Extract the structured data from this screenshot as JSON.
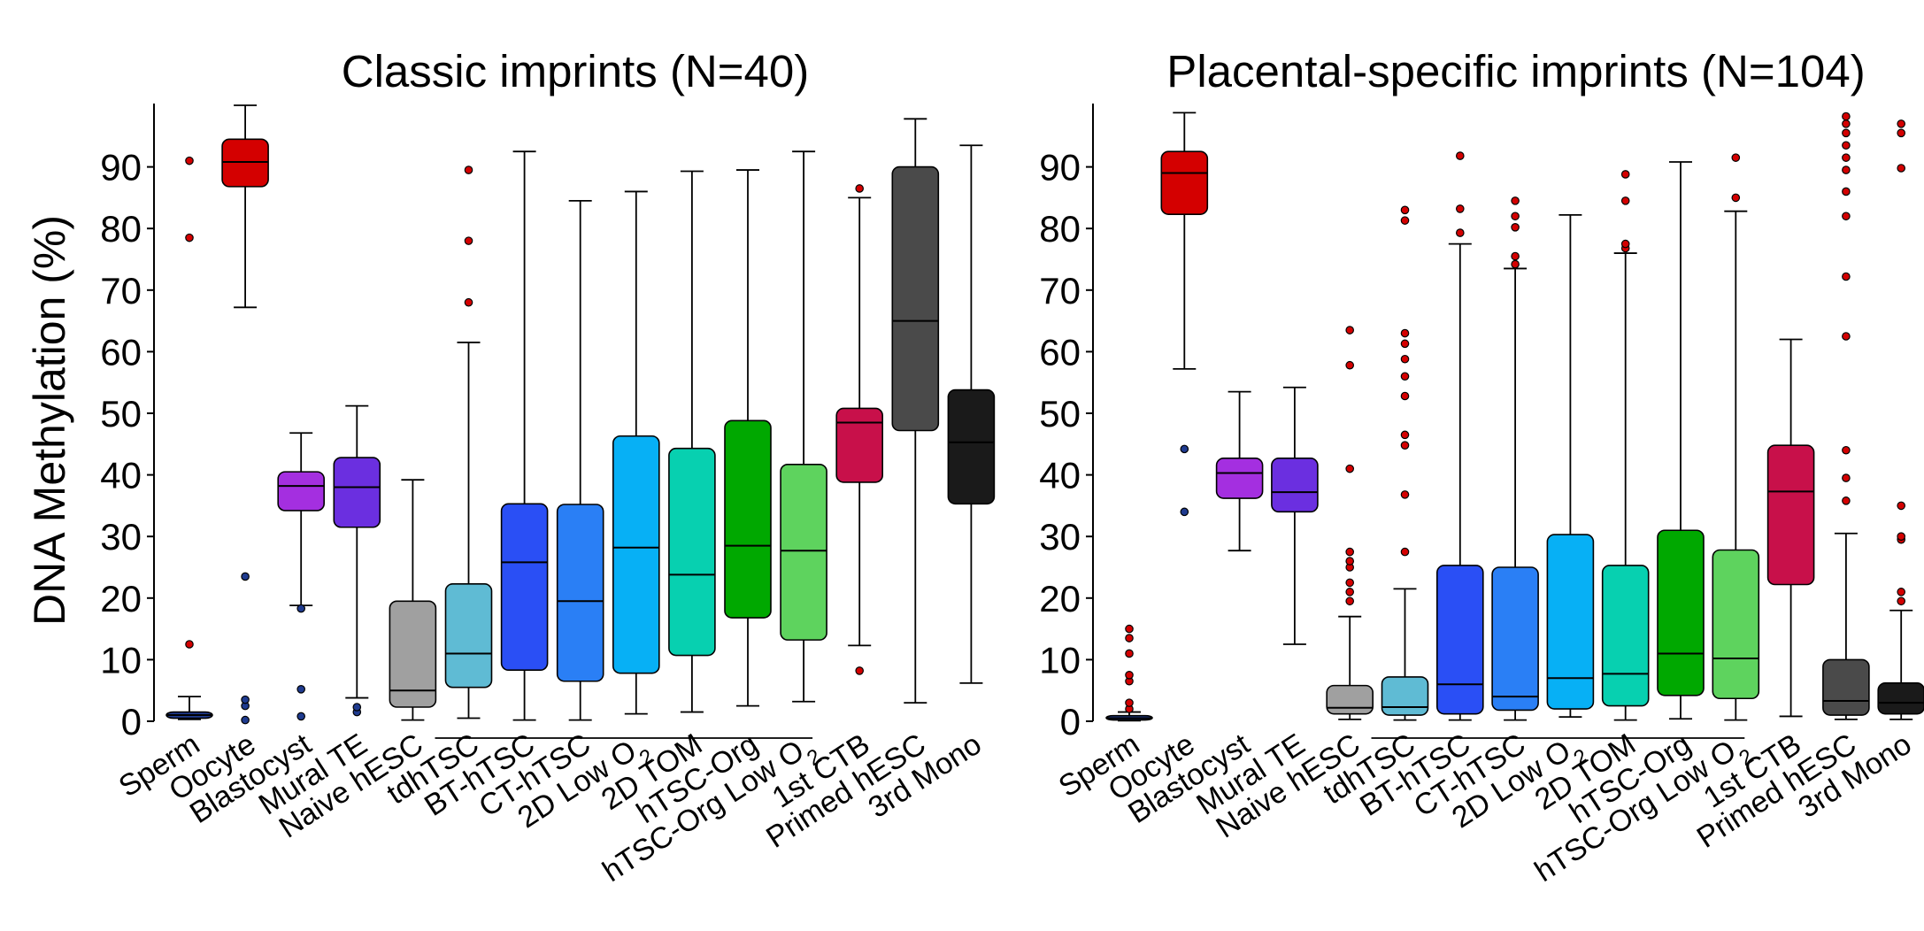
{
  "chart_data": [
    {
      "type": "boxplot",
      "title": "Classic imprints (N=40)",
      "ylabel": "DNA Methylation (%)",
      "ylim": [
        0,
        100
      ],
      "yticks": [
        0,
        10,
        20,
        30,
        40,
        50,
        60,
        70,
        80,
        90
      ],
      "bracket": {
        "from": "tdhTSC",
        "to": "hTSC-Org Low O2"
      },
      "series": [
        {
          "name": "Sperm",
          "color": "#1f3b8f",
          "whisker_low": 0.3,
          "q1": 0.5,
          "median": 1.0,
          "q3": 1.5,
          "whisker_high": 4.0,
          "outliers": [
            12.5,
            78.5,
            91.0
          ],
          "outlier_color": "#d40000"
        },
        {
          "name": "Oocyte",
          "color": "#d40000",
          "whisker_low": 67.2,
          "q1": 86.8,
          "median": 90.8,
          "q3": 94.5,
          "whisker_high": 100.0,
          "outliers": [
            0.2,
            2.5,
            3.5,
            23.5
          ],
          "outlier_color": "#1f3b8f"
        },
        {
          "name": "Blastocyst",
          "color": "#a42fe0",
          "whisker_low": 18.8,
          "q1": 34.2,
          "median": 38.2,
          "q3": 40.5,
          "whisker_high": 46.8,
          "outliers": [
            0.8,
            5.2,
            18.3
          ],
          "outlier_color": "#1f3b8f"
        },
        {
          "name": "Mural TE",
          "color": "#6b2fe0",
          "whisker_low": 3.8,
          "q1": 31.5,
          "median": 38.0,
          "q3": 42.8,
          "whisker_high": 51.2,
          "outliers": [
            1.5,
            2.3
          ],
          "outlier_color": "#1f3b8f"
        },
        {
          "name": "Naive hESC",
          "color": "#a0a0a0",
          "whisker_low": 0.2,
          "q1": 2.3,
          "median": 5.0,
          "q3": 19.5,
          "whisker_high": 39.2,
          "outliers": [],
          "outlier_color": "#d40000"
        },
        {
          "name": "tdhTSC",
          "color": "#5fbbd4",
          "whisker_low": 0.5,
          "q1": 5.5,
          "median": 11.0,
          "q3": 22.3,
          "whisker_high": 61.5,
          "outliers": [
            68.0,
            78.0,
            89.5
          ],
          "outlier_color": "#d40000"
        },
        {
          "name": "BT-hTSC",
          "color": "#2a4ff5",
          "whisker_low": 0.2,
          "q1": 8.3,
          "median": 25.8,
          "q3": 35.3,
          "whisker_high": 92.5,
          "outliers": [],
          "outlier_color": "#d40000"
        },
        {
          "name": "CT-hTSC",
          "color": "#2a7ff5",
          "whisker_low": 0.2,
          "q1": 6.5,
          "median": 19.5,
          "q3": 35.2,
          "whisker_high": 84.5,
          "outliers": [],
          "outlier_color": "#d40000"
        },
        {
          "name": "2D Low O2",
          "color": "#07b0f5",
          "whisker_low": 1.2,
          "q1": 7.8,
          "median": 28.2,
          "q3": 46.3,
          "whisker_high": 86.0,
          "outliers": [],
          "outlier_color": "#d40000"
        },
        {
          "name": "2D TOM",
          "color": "#07d0b0",
          "whisker_low": 1.5,
          "q1": 10.7,
          "median": 23.8,
          "q3": 44.3,
          "whisker_high": 89.3,
          "outliers": [],
          "outlier_color": "#d40000"
        },
        {
          "name": "hTSC-Org",
          "color": "#00a800",
          "whisker_low": 2.5,
          "q1": 16.8,
          "median": 28.5,
          "q3": 48.8,
          "whisker_high": 89.5,
          "outliers": [],
          "outlier_color": "#d40000"
        },
        {
          "name": "hTSC-Org Low O2",
          "color": "#5ed35e",
          "whisker_low": 3.2,
          "q1": 13.2,
          "median": 27.7,
          "q3": 41.7,
          "whisker_high": 92.5,
          "outliers": [],
          "outlier_color": "#d40000"
        },
        {
          "name": "1st CTB",
          "color": "#c8104a",
          "whisker_low": 12.3,
          "q1": 38.8,
          "median": 48.5,
          "q3": 50.8,
          "whisker_high": 85.0,
          "outliers": [
            8.2,
            86.5
          ],
          "outlier_color": "#d40000"
        },
        {
          "name": "Primed hESC",
          "color": "#4a4a4a",
          "whisker_low": 3.0,
          "q1": 47.2,
          "median": 65.0,
          "q3": 90.0,
          "whisker_high": 97.8,
          "outliers": [],
          "outlier_color": "#d40000"
        },
        {
          "name": "3rd Mono",
          "color": "#1a1a1a",
          "whisker_low": 6.2,
          "q1": 35.3,
          "median": 45.3,
          "q3": 53.8,
          "whisker_high": 93.5,
          "outliers": [],
          "outlier_color": "#d40000"
        }
      ]
    },
    {
      "type": "boxplot",
      "title": "Placental-specific imprints (N=104)",
      "ylabel": "",
      "ylim": [
        0,
        100
      ],
      "yticks": [
        0,
        10,
        20,
        30,
        40,
        50,
        60,
        70,
        80,
        90
      ],
      "bracket": {
        "from": "tdhTSC",
        "to": "hTSC-Org Low O2"
      },
      "series": [
        {
          "name": "Sperm",
          "color": "#1f3b8f",
          "whisker_low": 0.1,
          "q1": 0.2,
          "median": 0.5,
          "q3": 0.9,
          "whisker_high": 1.5,
          "outliers": [
            2.0,
            3.0,
            6.5,
            7.5,
            11.0,
            13.5,
            15.0
          ],
          "outlier_color": "#d40000"
        },
        {
          "name": "Oocyte",
          "color": "#d40000",
          "whisker_low": 57.2,
          "q1": 82.3,
          "median": 89.0,
          "q3": 92.5,
          "whisker_high": 98.8,
          "outliers": [
            34.0,
            44.2
          ],
          "outlier_color": "#1f3b8f"
        },
        {
          "name": "Blastocyst",
          "color": "#a42fe0",
          "whisker_low": 27.7,
          "q1": 36.2,
          "median": 40.3,
          "q3": 42.7,
          "whisker_high": 53.5,
          "outliers": [],
          "outlier_color": "#d40000"
        },
        {
          "name": "Mural TE",
          "color": "#6b2fe0",
          "whisker_low": 12.5,
          "q1": 34.0,
          "median": 37.2,
          "q3": 42.7,
          "whisker_high": 54.2,
          "outliers": [],
          "outlier_color": "#d40000"
        },
        {
          "name": "Naive hESC",
          "color": "#a0a0a0",
          "whisker_low": 0.3,
          "q1": 1.2,
          "median": 2.2,
          "q3": 5.8,
          "whisker_high": 17.0,
          "outliers": [
            19.5,
            21.0,
            22.5,
            25.0,
            26.0,
            27.5,
            41.0,
            57.8,
            63.5
          ],
          "outlier_color": "#d40000"
        },
        {
          "name": "tdhTSC",
          "color": "#5fbbd4",
          "whisker_low": 0.2,
          "q1": 1.0,
          "median": 2.3,
          "q3": 7.2,
          "whisker_high": 21.5,
          "outliers": [
            27.5,
            36.8,
            44.8,
            46.5,
            52.8,
            56.0,
            58.8,
            61.3,
            63.0,
            81.3,
            83.0
          ],
          "outlier_color": "#d40000"
        },
        {
          "name": "BT-hTSC",
          "color": "#2a4ff5",
          "whisker_low": 0.2,
          "q1": 1.2,
          "median": 6.0,
          "q3": 25.3,
          "whisker_high": 77.5,
          "outliers": [
            79.3,
            83.2,
            91.8
          ],
          "outlier_color": "#d40000"
        },
        {
          "name": "CT-hTSC",
          "color": "#2a7ff5",
          "whisker_low": 0.2,
          "q1": 1.8,
          "median": 4.0,
          "q3": 25.0,
          "whisker_high": 73.5,
          "outliers": [
            74.2,
            75.5,
            80.2,
            82.0,
            84.5
          ],
          "outlier_color": "#d40000"
        },
        {
          "name": "2D Low O2",
          "color": "#07b0f5",
          "whisker_low": 0.7,
          "q1": 2.0,
          "median": 7.0,
          "q3": 30.3,
          "whisker_high": 82.2,
          "outliers": [],
          "outlier_color": "#d40000"
        },
        {
          "name": "2D TOM",
          "color": "#07d0b0",
          "whisker_low": 0.2,
          "q1": 2.5,
          "median": 7.7,
          "q3": 25.3,
          "whisker_high": 76.0,
          "outliers": [
            76.8,
            77.5,
            84.5,
            88.8
          ],
          "outlier_color": "#d40000"
        },
        {
          "name": "hTSC-Org",
          "color": "#00a800",
          "whisker_low": 0.4,
          "q1": 4.2,
          "median": 11.0,
          "q3": 31.0,
          "whisker_high": 90.8,
          "outliers": [],
          "outlier_color": "#d40000"
        },
        {
          "name": "hTSC-Org Low O2",
          "color": "#5ed35e",
          "whisker_low": 0.2,
          "q1": 3.7,
          "median": 10.2,
          "q3": 27.8,
          "whisker_high": 82.8,
          "outliers": [
            85.0,
            91.5
          ],
          "outlier_color": "#d40000"
        },
        {
          "name": "1st CTB",
          "color": "#c8104a",
          "whisker_low": 0.8,
          "q1": 22.2,
          "median": 37.3,
          "q3": 44.8,
          "whisker_high": 62.0,
          "outliers": [],
          "outlier_color": "#d40000"
        },
        {
          "name": "Primed hESC",
          "color": "#4a4a4a",
          "whisker_low": 0.3,
          "q1": 1.0,
          "median": 3.3,
          "q3": 10.0,
          "whisker_high": 30.5,
          "outliers": [
            35.8,
            39.5,
            44.0,
            62.5,
            72.2,
            82.0,
            86.0,
            89.5,
            91.5,
            93.5,
            95.5,
            97.0,
            98.2
          ],
          "outlier_color": "#d40000"
        },
        {
          "name": "3rd Mono",
          "color": "#1a1a1a",
          "whisker_low": 0.3,
          "q1": 1.2,
          "median": 3.0,
          "q3": 6.2,
          "whisker_high": 18.0,
          "outliers": [
            19.5,
            21.0,
            29.5,
            30.0,
            35.0,
            89.8,
            95.5,
            97.0
          ],
          "outlier_color": "#d40000"
        }
      ]
    }
  ]
}
